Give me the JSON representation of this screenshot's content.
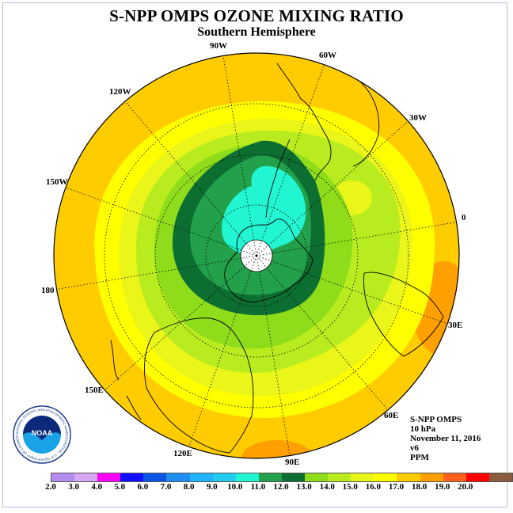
{
  "title": "S-NPP OMPS OZONE MIXING RATIO",
  "subtitle": "Southern Hemisphere",
  "longitude_labels": [
    "90W",
    "60W",
    "30W",
    "0",
    "30E",
    "60E",
    "90E",
    "120E",
    "150E",
    "180",
    "150W",
    "120W"
  ],
  "info": {
    "satellite": "S-NPP OMPS",
    "pressure": "10 hPa",
    "date": "November 11, 2016",
    "version": "v6",
    "units": "PPM"
  },
  "colorbar": {
    "ticks": [
      "2.0",
      "3.0",
      "4.0",
      "5.0",
      "6.0",
      "7.0",
      "8.0",
      "9.0",
      "10.0",
      "11.0",
      "12.0",
      "13.0",
      "14.0",
      "15.0",
      "16.0",
      "17.0",
      "18.0",
      "19.0",
      "20.0"
    ],
    "colors": [
      "#b58cf0",
      "#d6a8f5",
      "#ff00ff",
      "#1010ff",
      "#0a55e6",
      "#1e8ff0",
      "#1eb4ff",
      "#22ccee",
      "#22f5d2",
      "#22a04a",
      "#0d6e32",
      "#8edc1a",
      "#b8ec1e",
      "#eaf51a",
      "#ffff00",
      "#ffcc00",
      "#ffa000",
      "#ff6020",
      "#ff0000",
      "#8c5a3c"
    ]
  },
  "logo_text": "NOAA",
  "logo_ring_text": "NATIONAL OCEANIC AND ATMOSPHERIC ADMINISTRATION · U.S. DEPARTMENT OF COMMERCE"
}
